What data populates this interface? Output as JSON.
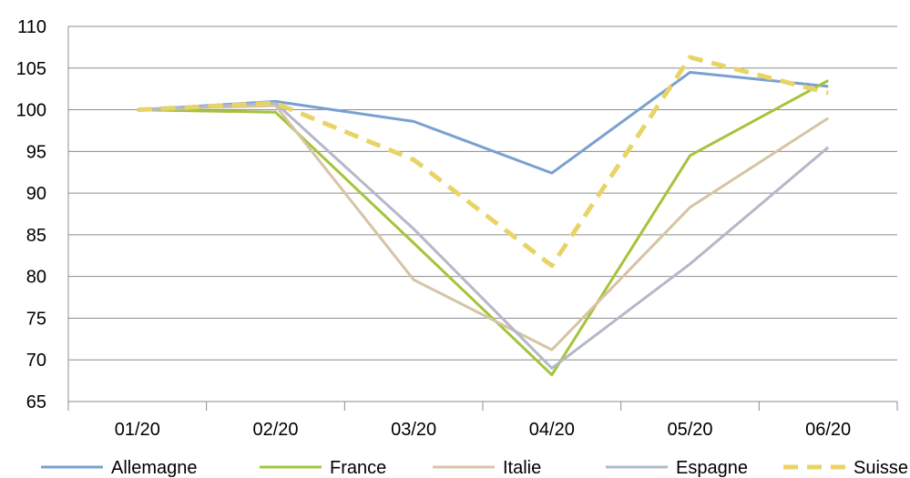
{
  "chart_data": {
    "type": "line",
    "title": "",
    "xlabel": "",
    "ylabel": "",
    "categories": [
      "01/20",
      "02/20",
      "03/20",
      "04/20",
      "05/20",
      "06/20"
    ],
    "ylim": [
      65,
      110
    ],
    "yticks": [
      65,
      70,
      75,
      80,
      85,
      90,
      95,
      100,
      105,
      110
    ],
    "grid": "horizontal",
    "legend_position": "bottom",
    "series": [
      {
        "name": "Allemagne",
        "values": [
          100,
          101,
          98.6,
          92.4,
          104.5,
          102.8
        ],
        "color": "#7aa0d0",
        "dashed": false
      },
      {
        "name": "France",
        "values": [
          100,
          99.7,
          84.0,
          68.2,
          94.5,
          103.5
        ],
        "color": "#a4c43a",
        "dashed": false
      },
      {
        "name": "Italie",
        "values": [
          100,
          100.5,
          79.6,
          71.2,
          88.3,
          99.0
        ],
        "color": "#d6c4a4",
        "dashed": false
      },
      {
        "name": "Espagne",
        "values": [
          100,
          100.8,
          85.7,
          69.0,
          81.5,
          95.5
        ],
        "color": "#b4b8c8",
        "dashed": false
      },
      {
        "name": "Suisse",
        "values": [
          100,
          100.8,
          94.0,
          81.3,
          106.3,
          102.0
        ],
        "color": "#e8d466",
        "dashed": true
      }
    ]
  }
}
